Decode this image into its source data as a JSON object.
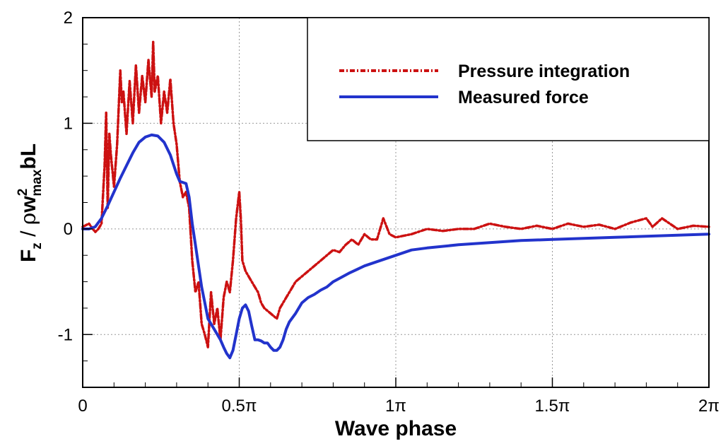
{
  "chart_data": {
    "type": "line",
    "xlabel": "Wave phase",
    "ylabel": {
      "base": "F",
      "base_sub": "z",
      "sep": " / ",
      "rho": "ρ",
      "w": "w",
      "w_sup": "2",
      "w_sub": "max",
      "tail": "bL"
    },
    "xlim": [
      0,
      2
    ],
    "ylim": [
      -1.5,
      2
    ],
    "x_unit": "pi",
    "x_ticks": [
      {
        "value": 0,
        "label": "0"
      },
      {
        "value": 0.5,
        "label": "0.5π"
      },
      {
        "value": 1,
        "label": "1π"
      },
      {
        "value": 1.5,
        "label": "1.5π"
      },
      {
        "value": 2,
        "label": "2π"
      }
    ],
    "y_ticks": [
      {
        "value": -1,
        "label": "-1"
      },
      {
        "value": 0,
        "label": "0"
      },
      {
        "value": 1,
        "label": "1"
      },
      {
        "value": 2,
        "label": "2"
      }
    ],
    "grid": true,
    "legend_position": "top-right",
    "series": [
      {
        "name": "Pressure integration",
        "color": "#cc1111",
        "style": "dash-dot",
        "x": [
          0,
          0.02,
          0.04,
          0.05,
          0.06,
          0.07,
          0.075,
          0.08,
          0.085,
          0.09,
          0.1,
          0.11,
          0.12,
          0.125,
          0.13,
          0.14,
          0.15,
          0.16,
          0.17,
          0.18,
          0.19,
          0.2,
          0.21,
          0.22,
          0.225,
          0.23,
          0.24,
          0.25,
          0.26,
          0.27,
          0.28,
          0.29,
          0.3,
          0.31,
          0.32,
          0.33,
          0.34,
          0.35,
          0.36,
          0.37,
          0.38,
          0.39,
          0.4,
          0.41,
          0.42,
          0.43,
          0.44,
          0.45,
          0.46,
          0.47,
          0.48,
          0.49,
          0.5,
          0.505,
          0.51,
          0.52,
          0.53,
          0.54,
          0.55,
          0.56,
          0.57,
          0.58,
          0.6,
          0.62,
          0.63,
          0.64,
          0.65,
          0.66,
          0.68,
          0.7,
          0.72,
          0.74,
          0.76,
          0.78,
          0.8,
          0.82,
          0.84,
          0.86,
          0.88,
          0.9,
          0.92,
          0.94,
          0.96,
          0.98,
          1.0,
          1.05,
          1.1,
          1.15,
          1.2,
          1.25,
          1.3,
          1.35,
          1.4,
          1.45,
          1.5,
          1.55,
          1.6,
          1.65,
          1.7,
          1.75,
          1.8,
          1.82,
          1.85,
          1.9,
          1.95,
          2.0
        ],
        "y": [
          0.02,
          0.05,
          -0.03,
          0.0,
          0.05,
          0.6,
          1.1,
          0.2,
          0.9,
          0.7,
          0.4,
          0.8,
          1.5,
          1.2,
          1.3,
          0.9,
          1.4,
          1.0,
          1.55,
          1.1,
          1.45,
          1.2,
          1.6,
          1.25,
          1.77,
          1.3,
          1.45,
          1.0,
          1.3,
          1.1,
          1.42,
          1.0,
          0.8,
          0.45,
          0.3,
          0.35,
          0.2,
          -0.3,
          -0.6,
          -0.5,
          -0.9,
          -1.0,
          -1.12,
          -0.6,
          -0.9,
          -0.75,
          -1.05,
          -0.65,
          -0.5,
          -0.6,
          -0.3,
          0.1,
          0.35,
          0.1,
          -0.3,
          -0.4,
          -0.45,
          -0.5,
          -0.55,
          -0.6,
          -0.7,
          -0.75,
          -0.8,
          -0.85,
          -0.75,
          -0.7,
          -0.65,
          -0.6,
          -0.5,
          -0.45,
          -0.4,
          -0.35,
          -0.3,
          -0.25,
          -0.2,
          -0.22,
          -0.15,
          -0.1,
          -0.15,
          -0.05,
          -0.1,
          -0.1,
          0.1,
          -0.05,
          -0.08,
          -0.05,
          0.0,
          -0.02,
          0.0,
          0.0,
          0.05,
          0.02,
          0.0,
          0.03,
          0.0,
          0.05,
          0.02,
          0.04,
          0.0,
          0.06,
          0.1,
          0.02,
          0.1,
          0.0,
          0.03,
          0.02
        ]
      },
      {
        "name": "Measured force",
        "color": "#2233cc",
        "style": "solid",
        "x": [
          0,
          0.02,
          0.04,
          0.06,
          0.08,
          0.1,
          0.12,
          0.14,
          0.16,
          0.18,
          0.2,
          0.22,
          0.24,
          0.26,
          0.28,
          0.3,
          0.31,
          0.32,
          0.33,
          0.34,
          0.35,
          0.36,
          0.37,
          0.38,
          0.39,
          0.4,
          0.41,
          0.42,
          0.43,
          0.44,
          0.45,
          0.46,
          0.47,
          0.48,
          0.49,
          0.5,
          0.51,
          0.52,
          0.53,
          0.54,
          0.55,
          0.56,
          0.57,
          0.58,
          0.59,
          0.6,
          0.61,
          0.62,
          0.63,
          0.64,
          0.65,
          0.66,
          0.68,
          0.7,
          0.72,
          0.74,
          0.76,
          0.78,
          0.8,
          0.85,
          0.9,
          0.95,
          1.0,
          1.05,
          1.1,
          1.2,
          1.3,
          1.4,
          1.5,
          1.6,
          1.7,
          1.8,
          1.9,
          2.0
        ],
        "y": [
          0.0,
          0.0,
          0.02,
          0.1,
          0.22,
          0.35,
          0.48,
          0.6,
          0.72,
          0.82,
          0.87,
          0.89,
          0.88,
          0.82,
          0.7,
          0.52,
          0.45,
          0.44,
          0.43,
          0.3,
          0.05,
          -0.15,
          -0.35,
          -0.55,
          -0.7,
          -0.85,
          -0.9,
          -0.95,
          -1.0,
          -1.05,
          -1.12,
          -1.18,
          -1.22,
          -1.15,
          -1.0,
          -0.85,
          -0.75,
          -0.72,
          -0.78,
          -0.92,
          -1.05,
          -1.05,
          -1.06,
          -1.08,
          -1.08,
          -1.12,
          -1.15,
          -1.15,
          -1.12,
          -1.05,
          -0.95,
          -0.88,
          -0.8,
          -0.7,
          -0.65,
          -0.62,
          -0.58,
          -0.55,
          -0.5,
          -0.42,
          -0.35,
          -0.3,
          -0.25,
          -0.2,
          -0.18,
          -0.15,
          -0.13,
          -0.11,
          -0.1,
          -0.09,
          -0.08,
          -0.07,
          -0.06,
          -0.05
        ]
      }
    ]
  }
}
